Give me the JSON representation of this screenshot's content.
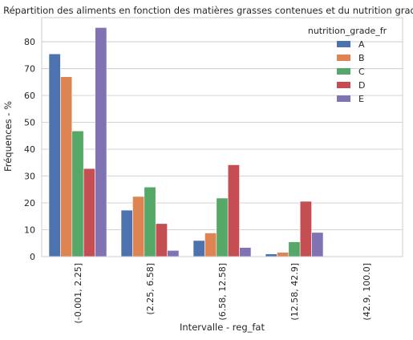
{
  "chart_data": {
    "type": "bar",
    "title": "Répartition des aliments en fonction des matières grasses contenues et du nutrition grade",
    "xlabel": "Intervalle - reg_fat",
    "ylabel": "Fréquences - %",
    "ylim": [
      0,
      89
    ],
    "yticks": [
      0,
      10,
      20,
      30,
      40,
      50,
      60,
      70,
      80
    ],
    "grid": "horizontal",
    "legend_title": "nutrition_grade_fr",
    "legend_position": "top-right",
    "categories": [
      "(-0.001, 2.25]",
      "(2.25, 6.58]",
      "(6.58, 12.58]",
      "(12.58, 42.9]",
      "(42.9, 100.0]"
    ],
    "series": [
      {
        "name": "A",
        "color": "#4c72b0",
        "values": [
          75.5,
          17.3,
          6.0,
          1.0,
          0.0
        ]
      },
      {
        "name": "B",
        "color": "#dd8452",
        "values": [
          67.0,
          22.4,
          8.8,
          1.6,
          0.0
        ]
      },
      {
        "name": "C",
        "color": "#55a868",
        "values": [
          46.8,
          25.9,
          21.8,
          5.5,
          0.0
        ]
      },
      {
        "name": "D",
        "color": "#c44e52",
        "values": [
          32.8,
          12.3,
          34.2,
          20.6,
          0.0
        ]
      },
      {
        "name": "E",
        "color": "#8172b3",
        "values": [
          85.3,
          2.3,
          3.4,
          9.0,
          0.0
        ]
      }
    ]
  }
}
